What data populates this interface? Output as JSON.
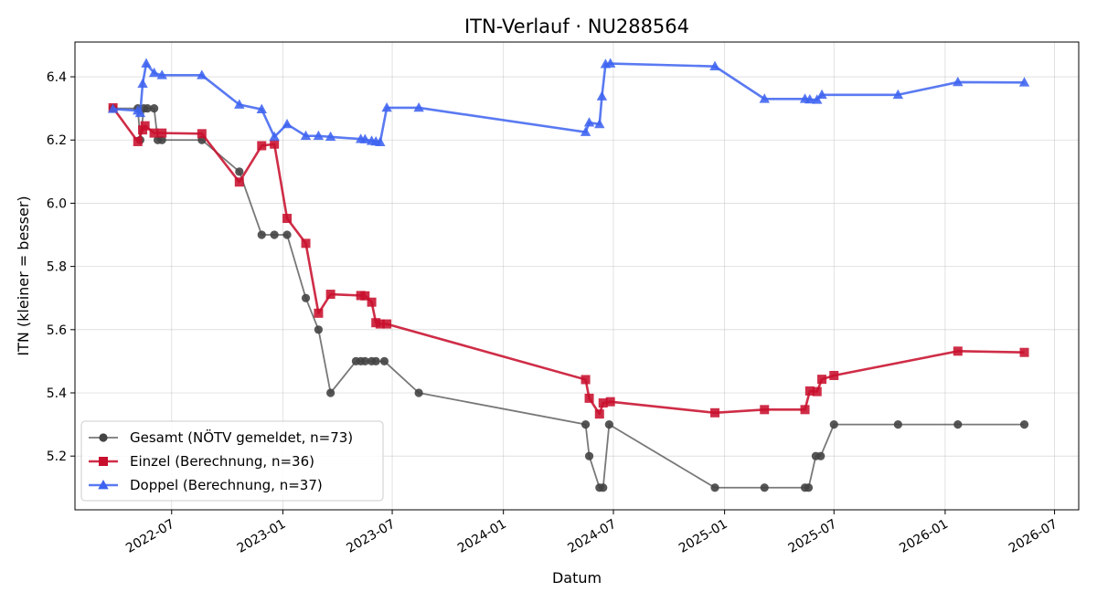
{
  "chart_data": {
    "type": "line",
    "title": "ITN-Verlauf · NU288564",
    "xlabel": "Datum",
    "ylabel": "ITN  (kleiner = besser)",
    "x_type": "date",
    "xlim": [
      "2022-01-22",
      "2026-08-10"
    ],
    "ylim": [
      5.03,
      6.51
    ],
    "x_ticks": [
      "2022-07-01",
      "2023-01-01",
      "2023-07-01",
      "2024-01-01",
      "2024-07-01",
      "2025-01-01",
      "2025-07-01",
      "2026-01-01",
      "2026-07-01"
    ],
    "x_tick_labels": [
      "2022-07",
      "2023-01",
      "2023-07",
      "2024-01",
      "2024-07",
      "2025-01",
      "2025-07",
      "2026-01",
      "2026-07"
    ],
    "y_ticks": [
      5.2,
      5.4,
      5.6,
      5.8,
      6.0,
      6.2,
      6.4
    ],
    "y_tick_labels": [
      "5.2",
      "5.4",
      "5.6",
      "5.8",
      "6.0",
      "6.2",
      "6.4"
    ],
    "grid": true,
    "legend_position": "lower-left",
    "series": [
      {
        "name": "Gesamt (NÖTV gemeldet, n=73)",
        "color": "#444444",
        "marker": "circle",
        "points": [
          [
            "2022-03-26",
            6.3
          ],
          [
            "2022-05-06",
            6.3
          ],
          [
            "2022-05-10",
            6.2
          ],
          [
            "2022-05-16",
            6.3
          ],
          [
            "2022-05-22",
            6.3
          ],
          [
            "2022-06-02",
            6.3
          ],
          [
            "2022-06-08",
            6.2
          ],
          [
            "2022-06-15",
            6.2
          ],
          [
            "2022-08-20",
            6.2
          ],
          [
            "2022-10-21",
            6.1
          ],
          [
            "2022-11-27",
            5.9
          ],
          [
            "2022-12-18",
            5.9
          ],
          [
            "2023-01-08",
            5.9
          ],
          [
            "2023-02-08",
            5.7
          ],
          [
            "2023-03-01",
            5.6
          ],
          [
            "2023-03-21",
            5.4
          ],
          [
            "2023-05-02",
            5.5
          ],
          [
            "2023-05-10",
            5.5
          ],
          [
            "2023-05-17",
            5.5
          ],
          [
            "2023-05-28",
            5.5
          ],
          [
            "2023-06-04",
            5.5
          ],
          [
            "2023-06-18",
            5.5
          ],
          [
            "2023-08-14",
            5.4
          ],
          [
            "2024-05-16",
            5.3
          ],
          [
            "2024-05-22",
            5.2
          ],
          [
            "2024-06-08",
            5.1
          ],
          [
            "2024-06-14",
            5.1
          ],
          [
            "2024-06-24",
            5.3
          ],
          [
            "2024-12-16",
            5.1
          ],
          [
            "2025-03-08",
            5.1
          ],
          [
            "2025-05-14",
            5.1
          ],
          [
            "2025-05-20",
            5.1
          ],
          [
            "2025-06-01",
            5.2
          ],
          [
            "2025-06-09",
            5.2
          ],
          [
            "2025-07-01",
            5.3
          ],
          [
            "2025-10-15",
            5.3
          ],
          [
            "2026-01-22",
            5.3
          ],
          [
            "2026-05-12",
            5.3
          ]
        ]
      },
      {
        "name": "Einzel (Berechnung, n=36)",
        "color": "#c8102e",
        "marker": "square",
        "points": [
          [
            "2022-03-26",
            6.302
          ],
          [
            "2022-05-06",
            6.195
          ],
          [
            "2022-05-14",
            6.232
          ],
          [
            "2022-05-18",
            6.245
          ],
          [
            "2022-06-02",
            6.222
          ],
          [
            "2022-06-15",
            6.222
          ],
          [
            "2022-08-20",
            6.22
          ],
          [
            "2022-10-21",
            6.067
          ],
          [
            "2022-11-27",
            6.182
          ],
          [
            "2022-12-18",
            6.187
          ],
          [
            "2023-01-08",
            5.952
          ],
          [
            "2023-02-08",
            5.873
          ],
          [
            "2023-03-01",
            5.652
          ],
          [
            "2023-03-21",
            5.712
          ],
          [
            "2023-05-10",
            5.708
          ],
          [
            "2023-05-17",
            5.707
          ],
          [
            "2023-05-28",
            5.687
          ],
          [
            "2023-06-04",
            5.622
          ],
          [
            "2023-06-11",
            5.618
          ],
          [
            "2023-06-22",
            5.618
          ],
          [
            "2024-05-16",
            5.442
          ],
          [
            "2024-05-22",
            5.383
          ],
          [
            "2024-06-08",
            5.333
          ],
          [
            "2024-06-14",
            5.368
          ],
          [
            "2024-06-26",
            5.372
          ],
          [
            "2024-12-16",
            5.337
          ],
          [
            "2025-03-08",
            5.347
          ],
          [
            "2025-05-14",
            5.347
          ],
          [
            "2025-05-22",
            5.406
          ],
          [
            "2025-06-03",
            5.404
          ],
          [
            "2025-06-11",
            5.443
          ],
          [
            "2025-07-01",
            5.455
          ],
          [
            "2026-01-22",
            5.532
          ],
          [
            "2026-05-12",
            5.528
          ]
        ]
      },
      {
        "name": "Doppel (Berechnung, n=37)",
        "color": "#3d63f0",
        "marker": "triangle",
        "points": [
          [
            "2022-03-26",
            6.298
          ],
          [
            "2022-05-06",
            6.293
          ],
          [
            "2022-05-10",
            6.285
          ],
          [
            "2022-05-14",
            6.378
          ],
          [
            "2022-05-20",
            6.442
          ],
          [
            "2022-06-02",
            6.412
          ],
          [
            "2022-06-15",
            6.405
          ],
          [
            "2022-08-20",
            6.405
          ],
          [
            "2022-10-21",
            6.312
          ],
          [
            "2022-11-27",
            6.297
          ],
          [
            "2022-12-18",
            6.21
          ],
          [
            "2023-01-08",
            6.25
          ],
          [
            "2023-02-08",
            6.213
          ],
          [
            "2023-03-01",
            6.213
          ],
          [
            "2023-03-21",
            6.21
          ],
          [
            "2023-05-10",
            6.203
          ],
          [
            "2023-05-17",
            6.202
          ],
          [
            "2023-05-28",
            6.197
          ],
          [
            "2023-06-04",
            6.195
          ],
          [
            "2023-06-11",
            6.193
          ],
          [
            "2023-06-22",
            6.302
          ],
          [
            "2023-08-14",
            6.302
          ],
          [
            "2024-05-16",
            6.225
          ],
          [
            "2024-05-22",
            6.255
          ],
          [
            "2024-06-08",
            6.25
          ],
          [
            "2024-06-12",
            6.338
          ],
          [
            "2024-06-18",
            6.44
          ],
          [
            "2024-06-26",
            6.442
          ],
          [
            "2024-12-16",
            6.433
          ],
          [
            "2025-03-08",
            6.33
          ],
          [
            "2025-05-14",
            6.33
          ],
          [
            "2025-05-22",
            6.328
          ],
          [
            "2025-06-03",
            6.327
          ],
          [
            "2025-06-11",
            6.343
          ],
          [
            "2025-10-15",
            6.343
          ],
          [
            "2026-01-22",
            6.383
          ],
          [
            "2026-05-12",
            6.382
          ]
        ]
      }
    ]
  }
}
